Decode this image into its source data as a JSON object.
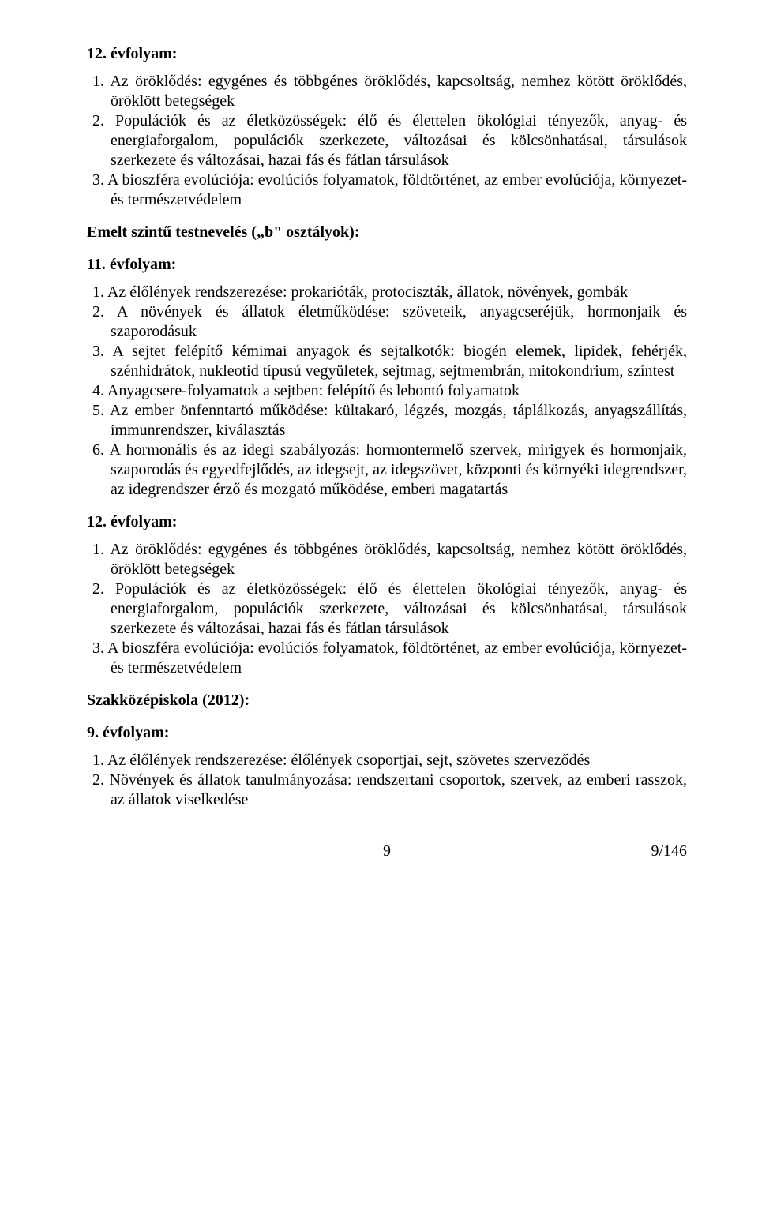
{
  "sections": {
    "s1": {
      "heading": "12. évfolyam:",
      "items": {
        "i1": {
          "num": "1.",
          "text": "Az öröklődés: egygénes és többgénes öröklődés, kapcsoltság, nemhez kötött öröklődés, öröklött betegségek"
        },
        "i2": {
          "num": "2.",
          "text": "Populációk és az életközösségek: élő és élettelen ökológiai tényezők, anyag- és energiaforgalom, populációk szerkezete, változásai és kölcsönhatásai, társulások szerkezete és változásai, hazai fás és fátlan társulások"
        },
        "i3": {
          "num": "3.",
          "text": "A bioszféra evolúciója: evolúciós folyamatok, földtörténet, az ember evolúciója, környezet- és természetvédelem"
        }
      }
    },
    "s2": {
      "heading": "Emelt szintű testnevelés („b\" osztályok):"
    },
    "s3": {
      "heading": "11. évfolyam:",
      "items": {
        "i1": {
          "num": "1.",
          "text": "Az élőlények rendszerezése: prokarióták, protociszták, állatok, növények, gombák"
        },
        "i2": {
          "num": "2.",
          "text": "A növények és állatok életműködése: szöveteik, anyagcseréjük, hormonjaik és szaporodásuk"
        },
        "i3": {
          "num": "3.",
          "text": "A sejtet felépítő kémimai anyagok és sejtalkotók: biogén elemek, lipidek, fehérjék, szénhidrátok, nukleotid típusú vegyületek, sejtmag, sejtmembrán, mitokondrium, színtest"
        },
        "i4": {
          "num": "4.",
          "text": "Anyagcsere-folyamatok a sejtben: felépítő és lebontó folyamatok"
        },
        "i5": {
          "num": "5.",
          "text": "Az ember önfenntartó működése: kültakaró, légzés, mozgás, táplálkozás, anyagszállítás, immunrendszer, kiválasztás"
        },
        "i6": {
          "num": "6.",
          "text": "A hormonális és az idegi szabályozás: hormontermelő szervek, mirigyek és hormonjaik, szaporodás és egyedfejlődés, az idegsejt, az idegszövet, központi és környéki idegrendszer, az idegrendszer érző és mozgató működése, emberi magatartás"
        }
      }
    },
    "s4": {
      "heading": "12. évfolyam:",
      "items": {
        "i1": {
          "num": "1.",
          "text": "Az öröklődés: egygénes és többgénes öröklődés, kapcsoltság, nemhez kötött öröklődés, öröklött betegségek"
        },
        "i2": {
          "num": "2.",
          "text": "Populációk és az életközösségek: élő és élettelen ökológiai tényezők, anyag- és energiaforgalom, populációk szerkezete, változásai és kölcsönhatásai, társulások szerkezete és változásai, hazai fás és fátlan társulások"
        },
        "i3": {
          "num": "3.",
          "text": "A bioszféra evolúciója: evolúciós folyamatok, földtörténet, az ember evolúciója, környezet- és természetvédelem"
        }
      }
    },
    "s5": {
      "heading": "Szakközépiskola (2012):"
    },
    "s6": {
      "heading": "9. évfolyam:",
      "items": {
        "i1": {
          "num": "1.",
          "text": "Az élőlények rendszerezése: élőlények csoportjai, sejt, szövetes szerveződés"
        },
        "i2": {
          "num": "2.",
          "text": "Növények és állatok tanulmányozása: rendszertani csoportok, szervek, az emberi rasszok, az állatok viselkedése"
        }
      }
    }
  },
  "footer": {
    "page_center": "9",
    "page_right": "9/146"
  }
}
